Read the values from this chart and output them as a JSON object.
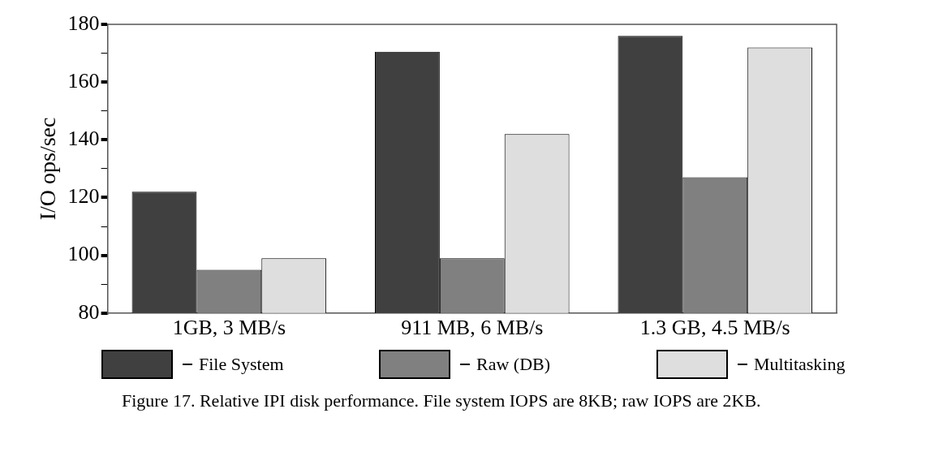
{
  "chart_data": {
    "type": "bar",
    "ylabel": "I/O ops/sec",
    "categories": [
      "1GB, 3 MB/s",
      "911 MB, 6 MB/s",
      "1.3 GB, 4.5 MB/s"
    ],
    "series": [
      {
        "name": "File System",
        "color": "#404040",
        "values": [
          122,
          170.5,
          176
        ]
      },
      {
        "name": "Raw (DB)",
        "color": "#808080",
        "values": [
          95,
          99,
          127
        ]
      },
      {
        "name": "Multitasking",
        "color": "#dedede",
        "values": [
          99,
          142,
          172
        ]
      }
    ],
    "ylim": [
      80,
      180
    ],
    "yticks": [
      80,
      {
        "value": 90,
        "label": null
      },
      100,
      {
        "value": 110,
        "label": null
      },
      120,
      {
        "value": 130,
        "label": null
      },
      140,
      {
        "value": 150,
        "label": null
      },
      160,
      {
        "value": 170,
        "label": null
      },
      180
    ],
    "grid": false,
    "legend": "bottom",
    "annotations": [
      "Figure 17. Relative IPI disk performance.  File system IOPS are 8KB; raw IOPS are 2KB."
    ]
  }
}
